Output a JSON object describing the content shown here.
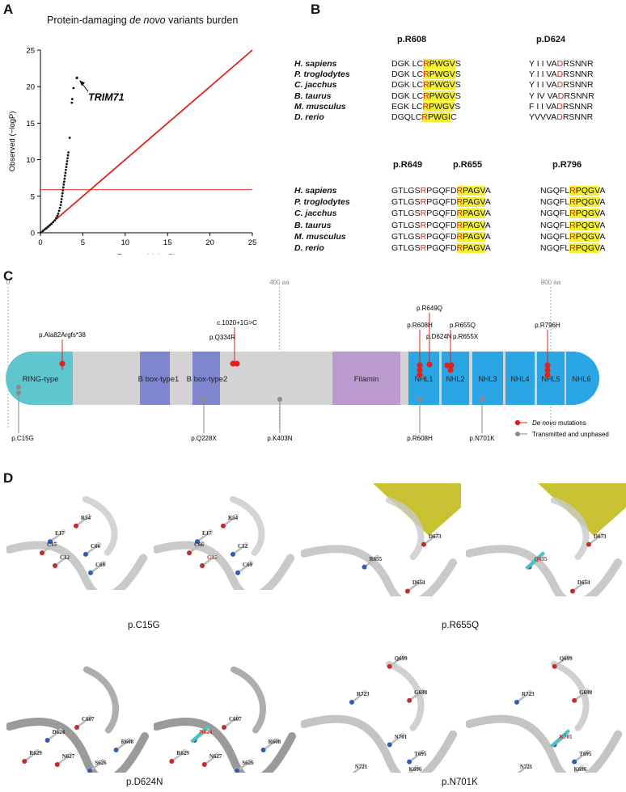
{
  "panel_letters": {
    "a": "A",
    "b": "B",
    "c": "C",
    "d": "D"
  },
  "chart_data": {
    "type": "scatter",
    "title_pre": "Protein-damaging ",
    "title_em": "de novo",
    "title_post": " variants burden",
    "xlabel": "Expected (−logP)",
    "ylabel": "Observed (−logP)",
    "xlim": [
      0,
      25
    ],
    "ylim": [
      0,
      25
    ],
    "xticks": [
      "0",
      "5",
      "10",
      "15",
      "20",
      "25"
    ],
    "yticks": [
      "0",
      "5",
      "10",
      "15",
      "20",
      "25"
    ],
    "significance_threshold": 5.9,
    "annotation": "TRIM71",
    "annotated_point": {
      "x": 4.3,
      "y": 21.2
    },
    "points": [
      {
        "x": 0.05,
        "y": 0.05
      },
      {
        "x": 0.3,
        "y": 0.25
      },
      {
        "x": 0.5,
        "y": 0.45
      },
      {
        "x": 0.7,
        "y": 0.6
      },
      {
        "x": 0.9,
        "y": 0.8
      },
      {
        "x": 1.1,
        "y": 1.0
      },
      {
        "x": 1.3,
        "y": 1.2
      },
      {
        "x": 1.5,
        "y": 1.45
      },
      {
        "x": 1.7,
        "y": 1.7
      },
      {
        "x": 1.85,
        "y": 2.0
      },
      {
        "x": 2.0,
        "y": 2.3
      },
      {
        "x": 2.1,
        "y": 2.6
      },
      {
        "x": 2.2,
        "y": 3.0
      },
      {
        "x": 2.3,
        "y": 3.4
      },
      {
        "x": 2.4,
        "y": 3.8
      },
      {
        "x": 2.45,
        "y": 4.2
      },
      {
        "x": 2.5,
        "y": 4.6
      },
      {
        "x": 2.55,
        "y": 5.0
      },
      {
        "x": 2.6,
        "y": 5.4
      },
      {
        "x": 2.65,
        "y": 5.8
      },
      {
        "x": 2.7,
        "y": 6.2
      },
      {
        "x": 2.75,
        "y": 6.6
      },
      {
        "x": 2.8,
        "y": 7.0
      },
      {
        "x": 2.85,
        "y": 7.4
      },
      {
        "x": 2.9,
        "y": 7.8
      },
      {
        "x": 2.95,
        "y": 8.2
      },
      {
        "x": 3.0,
        "y": 8.6
      },
      {
        "x": 3.05,
        "y": 9.0
      },
      {
        "x": 3.1,
        "y": 9.4
      },
      {
        "x": 3.15,
        "y": 9.8
      },
      {
        "x": 3.2,
        "y": 10.2
      },
      {
        "x": 3.25,
        "y": 10.6
      },
      {
        "x": 3.3,
        "y": 11.0
      },
      {
        "x": 3.45,
        "y": 13.0
      },
      {
        "x": 3.7,
        "y": 17.8
      },
      {
        "x": 3.75,
        "y": 18.3
      },
      {
        "x": 3.9,
        "y": 19.8
      }
    ]
  },
  "alignment": {
    "block1": {
      "sites": [
        "p.R608",
        "p.D624"
      ],
      "species": [
        "H. sapiens",
        "P. troglodytes",
        "C. jacchus",
        "B. taurus",
        "M. musculus",
        "D. rerio"
      ],
      "rows": [
        {
          "s1": [
            "DGK LC",
            "R",
            "PWGV",
            "S"
          ],
          "s2": [
            "Y I I VA",
            "D",
            "RSNNR"
          ]
        },
        {
          "s1": [
            "DGK LC",
            "R",
            "PWGV",
            "S"
          ],
          "s2": [
            "Y I I VA",
            "D",
            "RSNNR"
          ]
        },
        {
          "s1": [
            "DGK LC",
            "R",
            "PWGV",
            "S"
          ],
          "s2": [
            "Y I I VA",
            "D",
            "RSNNR"
          ]
        },
        {
          "s1": [
            "DGK LC",
            "R",
            "PWGV",
            "S"
          ],
          "s2": [
            "Y IV VA",
            "D",
            "RSNNR"
          ]
        },
        {
          "s1": [
            "EGK LC",
            "R",
            "PWGV",
            "S"
          ],
          "s2": [
            "F I I VA",
            "D",
            "RSNNR"
          ]
        },
        {
          "s1": [
            "DGQLC",
            "R",
            "PWGI",
            "C"
          ],
          "s2": [
            "YVVVA",
            "D",
            "RSNNR"
          ]
        }
      ]
    },
    "block2": {
      "sites": [
        "p.R649",
        "p.R655",
        "p.R796"
      ],
      "species": [
        "H. sapiens",
        "P. troglodytes",
        "C. jacchus",
        "B. taurus",
        "M. musculus",
        "D. rerio"
      ],
      "rows": [
        {
          "a": [
            "GTLGS",
            "R",
            "PGQFD",
            "R",
            "PAGV",
            "A"
          ],
          "b": [
            "NGQFL",
            "R",
            "PQGV",
            "A"
          ]
        },
        {
          "a": [
            "GTLGS",
            "R",
            "PGQFD",
            "R",
            "PAGV",
            "A"
          ],
          "b": [
            "NGQFL",
            "R",
            "PQGV",
            "A"
          ]
        },
        {
          "a": [
            "GTLGS",
            "R",
            "PGQFD",
            "R",
            "PAGV",
            "A"
          ],
          "b": [
            "NGQFL",
            "R",
            "PQGV",
            "A"
          ]
        },
        {
          "a": [
            "GTLGS",
            "R",
            "PGQFD",
            "R",
            "PAGV",
            "A"
          ],
          "b": [
            "NGQFL",
            "R",
            "PQGV",
            "A"
          ]
        },
        {
          "a": [
            "GTLGS",
            "R",
            "PGQFD",
            "R",
            "PAGV",
            "A"
          ],
          "b": [
            "NGQFL",
            "R",
            "PQGV",
            "A"
          ]
        },
        {
          "a": [
            "GTLGS",
            "R",
            "PGQFD",
            "R",
            "PAGV",
            "A"
          ],
          "b": [
            "NGQFL",
            "R",
            "PQGV",
            "A"
          ]
        }
      ]
    }
  },
  "protein_map": {
    "scale_labels": [
      "0",
      "400 aa",
      "800 aa"
    ],
    "domains": [
      {
        "label": "RING-type",
        "color": "#5fc6cf"
      },
      {
        "label": "B box-type1",
        "color": "#7e86cf"
      },
      {
        "label": "B box-type2",
        "color": "#7e86cf"
      },
      {
        "label": "Filamin",
        "color": "#bb9bcd"
      },
      {
        "label": "NHL1",
        "color": "#29a6e3"
      },
      {
        "label": "NHL2",
        "color": "#29a6e3"
      },
      {
        "label": "NHL3",
        "color": "#29a6e3"
      },
      {
        "label": "NHL4",
        "color": "#29a6e3"
      },
      {
        "label": "NHL5",
        "color": "#29a6e3"
      },
      {
        "label": "NHL6",
        "color": "#29a6e3"
      }
    ],
    "de_novo": [
      "p.Ala82Argfs*38",
      "c.1020+1G>C",
      "p.Q334R",
      "p.R608H",
      "p.R649Q",
      "p.D624N",
      "p.R655Q",
      "p.R655X",
      "p.R796H"
    ],
    "transmitted": [
      "p.C15G",
      "p.Q228X",
      "p.K403N",
      "p.R608H",
      "p.N701K"
    ],
    "legend": {
      "de_novo": "De novo",
      "de_novo_suffix": " mutations",
      "transmitted": "Transmitted and unphased"
    },
    "colors": {
      "de_novo": "#e0221f",
      "transmitted": "#8a8a8a",
      "backbone": "#d3d3d3"
    }
  },
  "structures": {
    "captions": [
      "p.C15G",
      "p.R655Q",
      "p.D624N",
      "p.N701K"
    ],
    "c15g": {
      "wt": [
        "R54",
        "E17",
        "C15",
        "C66",
        "C12",
        "C69"
      ],
      "mut": [
        "R54",
        "E17",
        "C66",
        "C12",
        "G15",
        "C69"
      ]
    },
    "r655q": {
      "wt": [
        "D673",
        "R655",
        "D654"
      ],
      "mut": [
        "D673",
        "Q655",
        "D654"
      ]
    },
    "d624n": {
      "wt": [
        "C607",
        "D624",
        "R629",
        "R608",
        "N627",
        "S626"
      ],
      "mut": [
        "C607",
        "N624",
        "R629",
        "R608",
        "N627",
        "S626"
      ]
    },
    "n701k": {
      "wt": [
        "Q699",
        "R723",
        "G698",
        "N701",
        "N721",
        "T695",
        "K696"
      ],
      "mut": [
        "Q699",
        "R723",
        "G698",
        "K701",
        "N721",
        "T695",
        "K696"
      ]
    }
  }
}
